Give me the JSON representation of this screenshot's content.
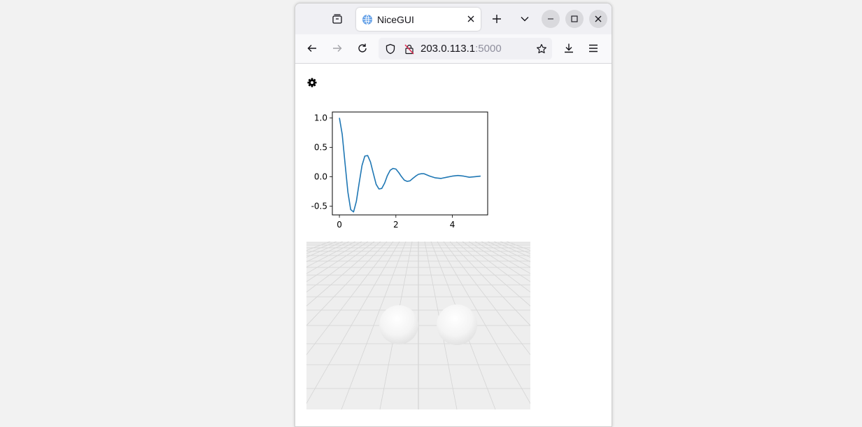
{
  "browser": {
    "tab_title": "NiceGUI",
    "url_host": "203.0.113.1",
    "url_port": ":5000"
  },
  "icons": {
    "tab_overview": "tab-overview-icon",
    "globe": "globe-icon",
    "close_tab": "close-icon",
    "new_tab": "plus-icon",
    "list_tabs": "chevron-down-icon",
    "minimize": "minimize-icon",
    "maximize": "maximize-icon",
    "close_window": "close-window-icon",
    "back": "back-arrow-icon",
    "forward": "forward-arrow-icon",
    "reload": "reload-icon",
    "tracking": "shield-icon",
    "insecure": "insecure-lock-icon",
    "bookmark": "star-icon",
    "downloads": "download-icon",
    "menu": "hamburger-menu-icon",
    "settings": "gear-icon"
  },
  "colors": {
    "line": "#1f77b4",
    "close_button_bg": "#d9d9dd",
    "floor": "#eeeeee",
    "grid": "#d4d4d4"
  },
  "chart_data": {
    "type": "line",
    "title": "",
    "xlabel": "",
    "ylabel": "",
    "xlim": [
      -0.25,
      5.25
    ],
    "ylim": [
      -0.65,
      1.1
    ],
    "xticks": [
      0,
      2,
      4
    ],
    "yticks": [
      -0.5,
      0.0,
      0.5,
      1.0
    ],
    "xtick_labels": [
      "0",
      "2",
      "4"
    ],
    "ytick_labels": [
      "-0.5",
      "0.0",
      "0.5",
      "1.0"
    ],
    "grid": false,
    "series": [
      {
        "x": [
          0.0,
          0.1,
          0.2,
          0.3,
          0.4,
          0.5,
          0.6,
          0.7,
          0.8,
          0.9,
          1.0,
          1.1,
          1.2,
          1.3,
          1.4,
          1.5,
          1.6,
          1.7,
          1.8,
          1.9,
          2.0,
          2.1,
          2.2,
          2.3,
          2.4,
          2.5,
          2.6,
          2.7,
          2.8,
          2.9,
          3.0,
          3.2,
          3.4,
          3.6,
          3.8,
          4.0,
          4.2,
          4.4,
          4.6,
          4.8,
          5.0
        ],
        "y": [
          1.0,
          0.72,
          0.22,
          -0.26,
          -0.56,
          -0.6,
          -0.42,
          -0.11,
          0.19,
          0.35,
          0.36,
          0.25,
          0.06,
          -0.13,
          -0.21,
          -0.2,
          -0.11,
          0.02,
          0.11,
          0.14,
          0.13,
          0.07,
          0.0,
          -0.06,
          -0.08,
          -0.07,
          -0.03,
          0.01,
          0.04,
          0.05,
          0.05,
          0.01,
          -0.02,
          -0.03,
          -0.01,
          0.01,
          0.02,
          0.01,
          -0.01,
          0.0,
          0.01
        ]
      }
    ]
  },
  "scene3d": {
    "objects": [
      "sphere",
      "sphere"
    ]
  }
}
